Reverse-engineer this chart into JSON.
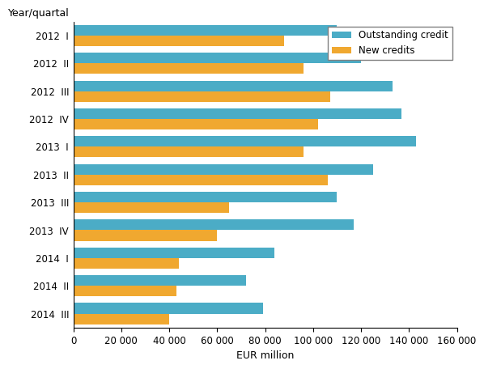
{
  "quarters": [
    "2012 I",
    "2012 II",
    "2012 III",
    "2012 IV",
    "2013 I",
    "2013 II",
    "2013 III",
    "2013 IV",
    "2014 I",
    "2014 II",
    "2014 III"
  ],
  "outstanding_credit": [
    110000,
    120000,
    133000,
    137000,
    143000,
    125000,
    110000,
    117000,
    84000,
    72000,
    79000
  ],
  "new_credits": [
    88000,
    96000,
    107000,
    102000,
    96000,
    106000,
    65000,
    60000,
    44000,
    43000,
    40000
  ],
  "outstanding_color": "#4bacc6",
  "new_credits_color": "#f0a830",
  "xlim": [
    0,
    160000
  ],
  "xticks": [
    0,
    20000,
    40000,
    60000,
    80000,
    100000,
    120000,
    140000,
    160000
  ],
  "xtick_labels": [
    "0",
    "20000",
    "40000",
    "60000",
    "80000",
    "100000",
    "120000",
    "140000",
    "160000"
  ],
  "xlabel": "EUR million",
  "ylabel": "Year/quartal",
  "legend_labels": [
    "Outstanding credit",
    "New credits"
  ],
  "bar_height": 0.38,
  "title": ""
}
